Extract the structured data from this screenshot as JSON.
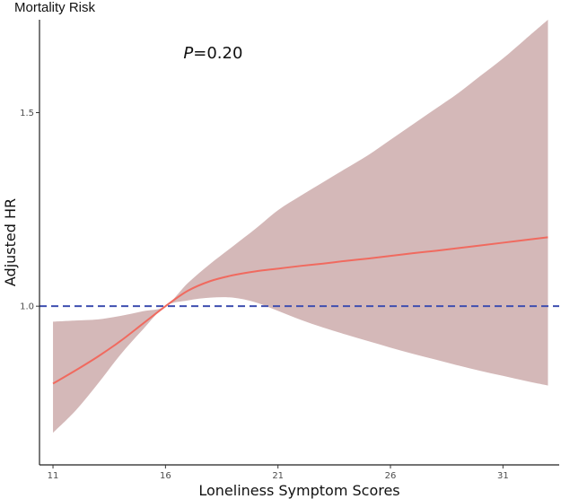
{
  "chart_data": {
    "type": "line",
    "title": "Mortality Risk",
    "xlabel": "Loneliness Symptom Scores",
    "ylabel": "Adjusted HR",
    "xlim": [
      10.4,
      33.5
    ],
    "ylim": [
      0.59,
      1.74
    ],
    "xticks": [
      11,
      16,
      21,
      26,
      31
    ],
    "yticks": [
      1.0,
      1.5
    ],
    "ytick_labels": [
      "1.0",
      "1.5"
    ],
    "reference_line": {
      "y": 1.0,
      "style": "dashed",
      "color": "#3f4fb0"
    },
    "annotation": {
      "italic": "P",
      "text": "=0.20",
      "x": 16.8,
      "y": 1.64
    },
    "series": [
      {
        "name": "HR",
        "color": "#f06a5f",
        "x": [
          11,
          12,
          13,
          14,
          15,
          16,
          17,
          18,
          19,
          20,
          21,
          22,
          23,
          24,
          25,
          26,
          27,
          28,
          29,
          30,
          31,
          32,
          33
        ],
        "values": [
          0.8,
          0.834,
          0.87,
          0.91,
          0.955,
          1.0,
          1.04,
          1.065,
          1.08,
          1.09,
          1.097,
          1.104,
          1.11,
          1.117,
          1.123,
          1.13,
          1.137,
          1.143,
          1.15,
          1.157,
          1.164,
          1.171,
          1.178
        ],
        "ci_lower": [
          0.673,
          0.73,
          0.8,
          0.875,
          0.94,
          1.0,
          1.015,
          1.022,
          1.022,
          1.01,
          0.988,
          0.965,
          0.945,
          0.927,
          0.91,
          0.893,
          0.877,
          0.862,
          0.847,
          0.833,
          0.82,
          0.807,
          0.795
        ],
        "ci_upper": [
          0.96,
          0.963,
          0.966,
          0.975,
          0.987,
          1.0,
          1.06,
          1.11,
          1.155,
          1.2,
          1.248,
          1.285,
          1.32,
          1.355,
          1.39,
          1.43,
          1.47,
          1.51,
          1.55,
          1.595,
          1.64,
          1.69,
          1.74
        ],
        "band_color": "#d4b8b8"
      }
    ]
  }
}
